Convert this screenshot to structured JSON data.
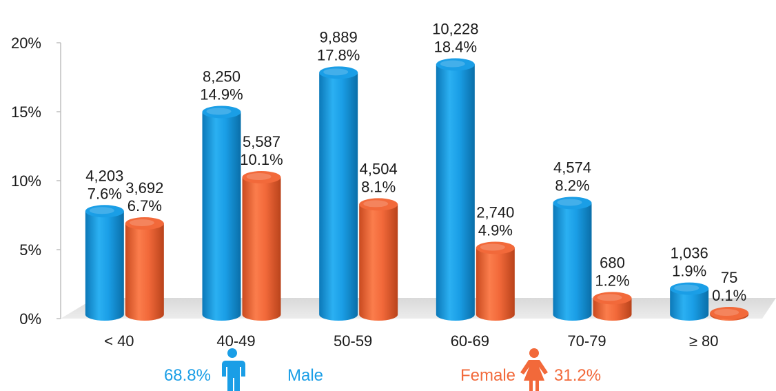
{
  "chart_data": {
    "type": "bar",
    "categories": [
      "< 40",
      "40-49",
      "50-59",
      "60-69",
      "70-79",
      "≥ 80"
    ],
    "series": [
      {
        "name": "Male",
        "color": "#1a9ee6",
        "values": [
          7.6,
          14.9,
          17.8,
          18.4,
          8.2,
          1.9
        ],
        "counts": [
          "4,203",
          "8,250",
          "9,889",
          "10,228",
          "4,574",
          "1,036"
        ],
        "labels": [
          "7.6%",
          "14.9%",
          "17.8%",
          "18.4%",
          "8.2%",
          "1.9%"
        ]
      },
      {
        "name": "Female",
        "color": "#f2693a",
        "values": [
          6.7,
          10.1,
          8.1,
          4.9,
          1.2,
          0.1
        ],
        "counts": [
          "3,692",
          "5,587",
          "4,504",
          "2,740",
          "680",
          "75"
        ],
        "labels": [
          "6.7%",
          "10.1%",
          "8.1%",
          "4.9%",
          "1.2%",
          "0.1%"
        ]
      }
    ],
    "ylim": [
      0,
      20
    ],
    "yticks": [
      0,
      5,
      10,
      15,
      20
    ],
    "ytick_labels": [
      "0%",
      "5%",
      "10%",
      "15%",
      "20%"
    ],
    "grid": false,
    "legend": {
      "male": {
        "percent": "68.8%",
        "label": "Male",
        "color": "#1a9ee6",
        "icon": "male-person-icon"
      },
      "female": {
        "label": "Female",
        "percent": "31.2%",
        "color": "#f2693a",
        "icon": "female-person-icon"
      }
    }
  }
}
